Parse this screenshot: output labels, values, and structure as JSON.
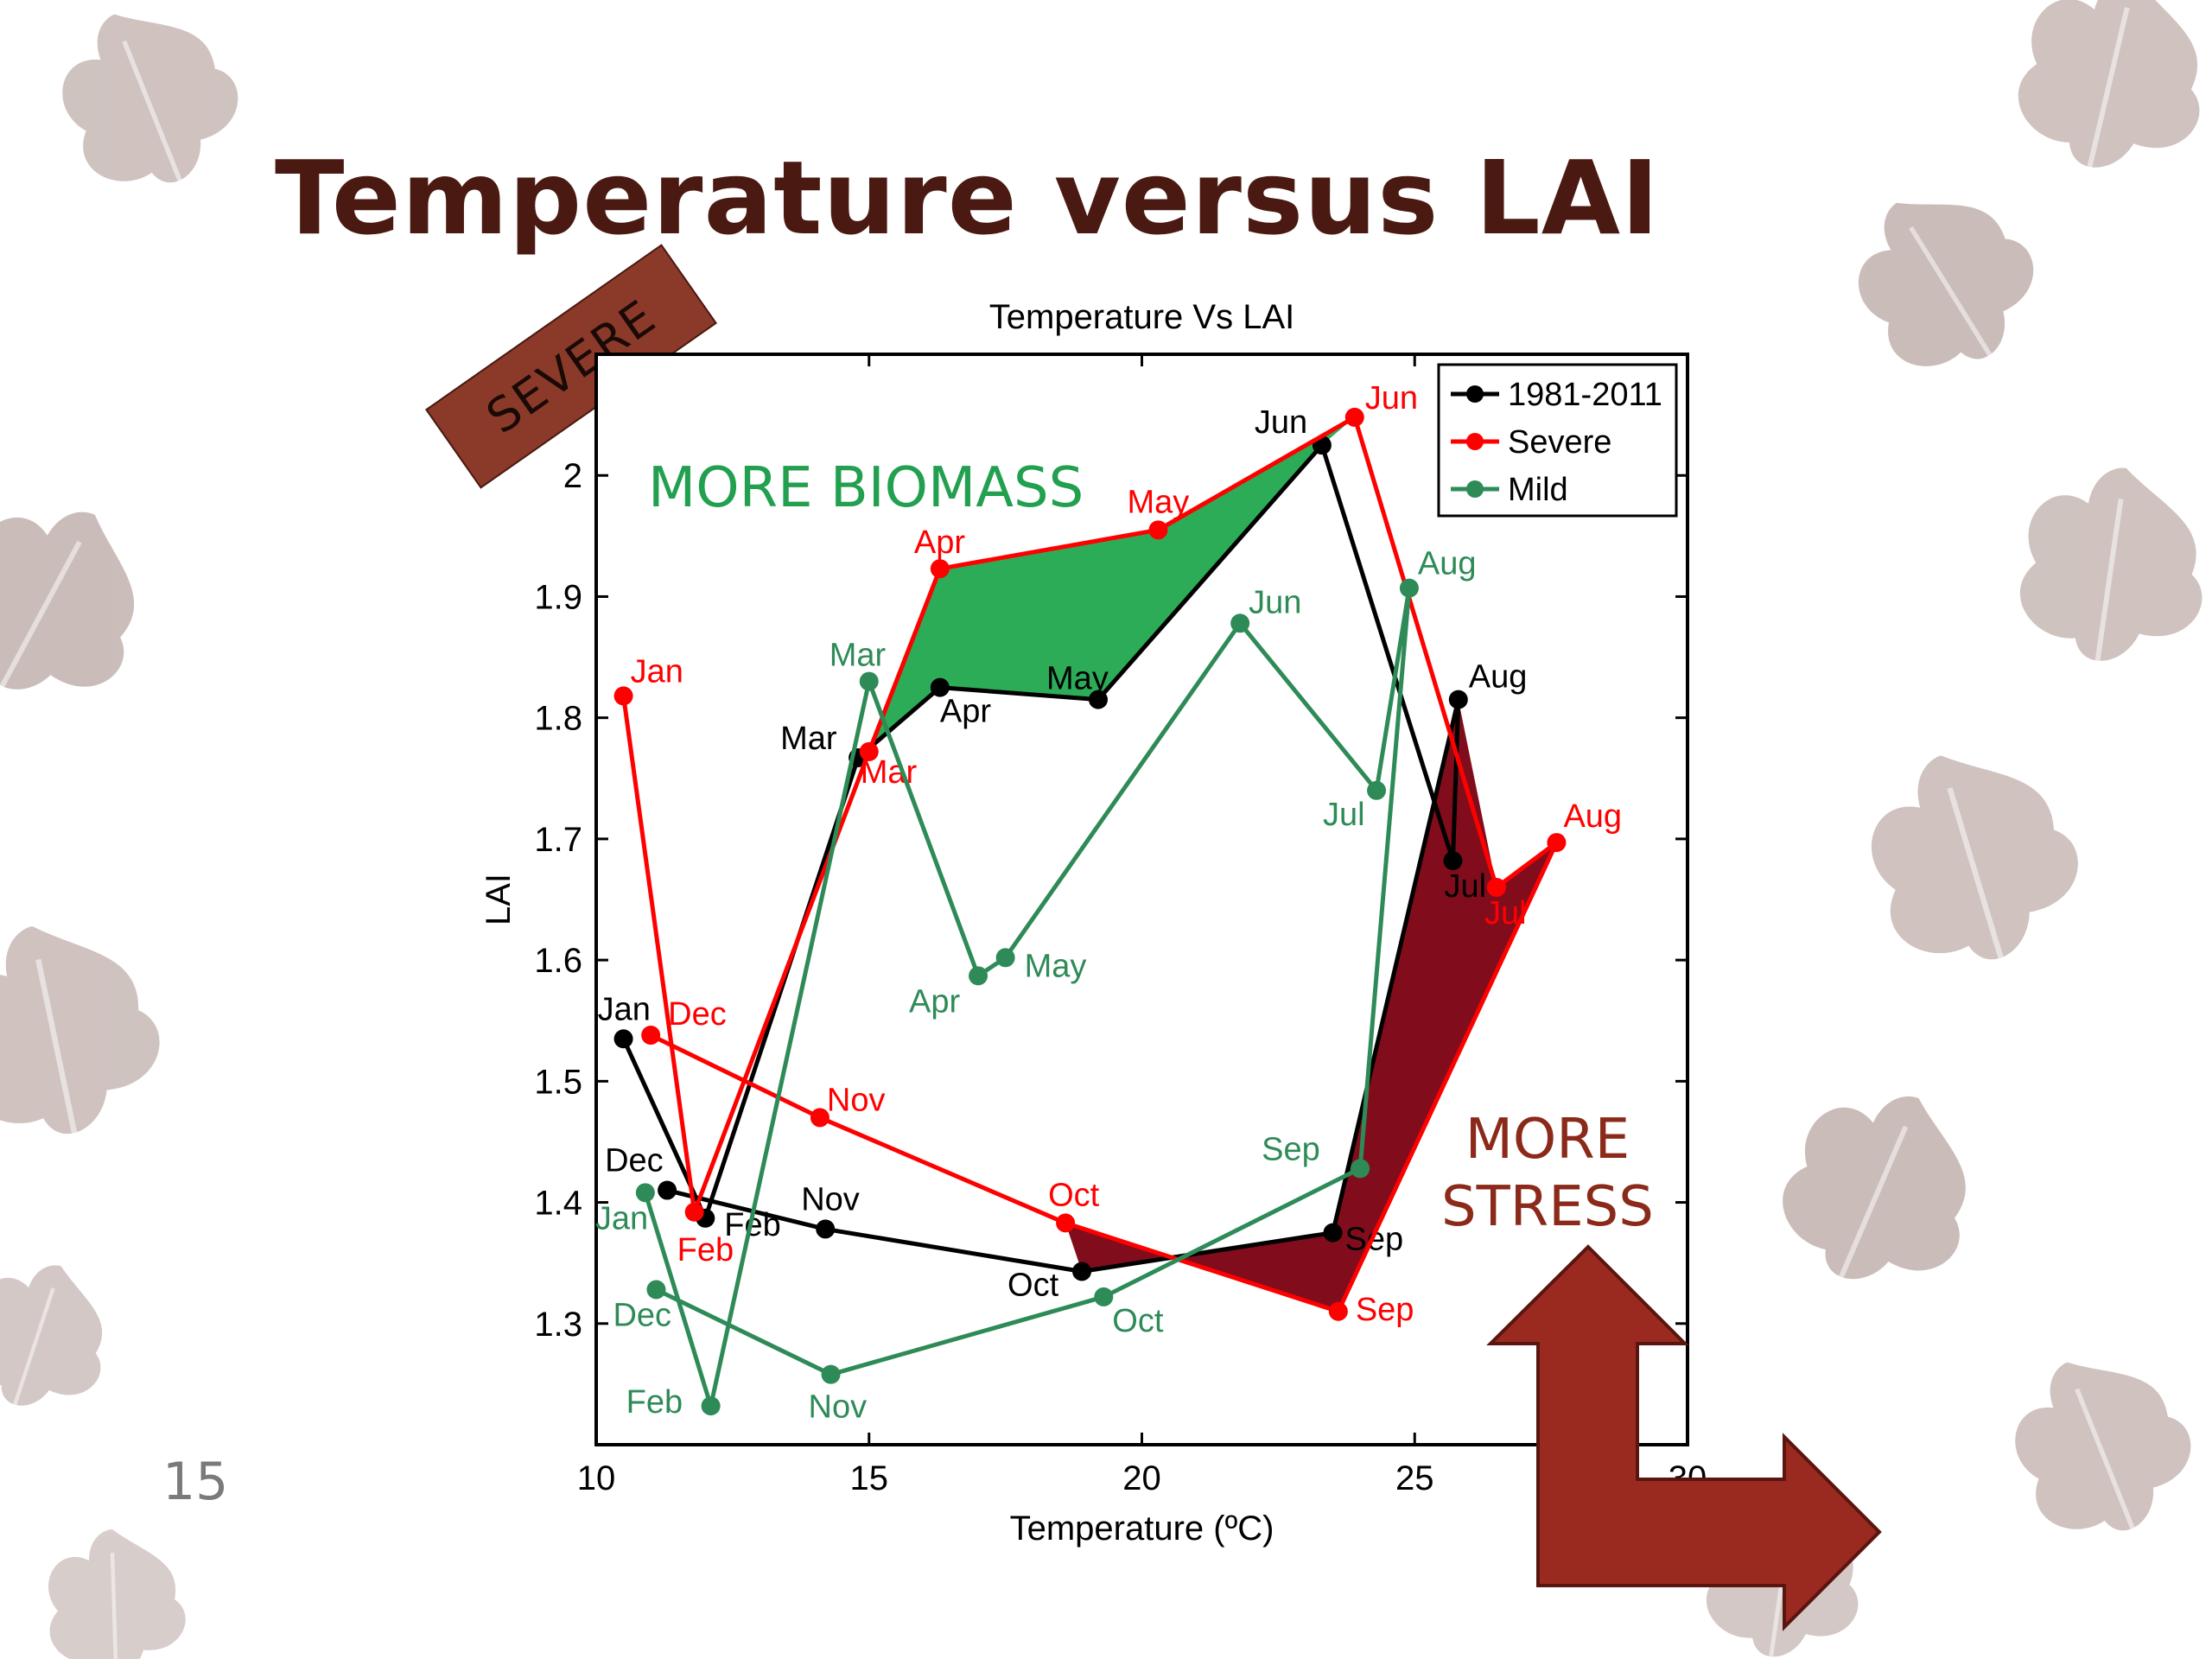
{
  "slide": {
    "title": "Temperature versus LAI",
    "page_number": "15",
    "severe_tag": "SEVERE",
    "more_biomass": "MORE BIOMASS",
    "more_stress_line1": "MORE",
    "more_stress_line2": "STRESS"
  },
  "colors": {
    "title": "#4a1a12",
    "leaf": "#a8928c",
    "arrow": "#9a2a1f",
    "baseline": "#000000",
    "severe": "#ff0000",
    "mild": "#2e8b57",
    "biomass_fill": "#22a84f",
    "stress_fill": "#7a0010"
  },
  "chart_data": {
    "type": "line",
    "title": "Temperature Vs LAI",
    "xlabel": "Temperature (ºC)",
    "ylabel": "LAI",
    "xlim": [
      10,
      30
    ],
    "ylim": [
      1.2,
      2.1
    ],
    "xticks": [
      10,
      15,
      20,
      25,
      30
    ],
    "yticks": [
      1.3,
      1.4,
      1.5,
      1.6,
      1.7,
      1.8,
      1.9,
      2
    ],
    "xtick_labels": [
      "10",
      "15",
      "20",
      "25",
      "30"
    ],
    "ytick_labels": [
      "1.3",
      "1.4",
      "1.5",
      "1.6",
      "1.7",
      "1.8",
      "1.9",
      "2"
    ],
    "legend_position": "top-right",
    "series": [
      {
        "name": "1981-2011",
        "color": "#000000",
        "points": [
          {
            "label": "Jan",
            "x": 10.5,
            "y": 1.535
          },
          {
            "label": "Feb",
            "x": 12.0,
            "y": 1.387
          },
          {
            "label": "Mar",
            "x": 14.8,
            "y": 1.767
          },
          {
            "label": "Apr",
            "x": 16.3,
            "y": 1.825
          },
          {
            "label": "May",
            "x": 19.2,
            "y": 1.815
          },
          {
            "label": "Jun",
            "x": 23.3,
            "y": 2.025
          },
          {
            "label": "Jul",
            "x": 25.7,
            "y": 1.682
          },
          {
            "label": "Aug",
            "x": 25.8,
            "y": 1.815
          },
          {
            "label": "Sep",
            "x": 23.5,
            "y": 1.375
          },
          {
            "label": "Oct",
            "x": 18.9,
            "y": 1.343
          },
          {
            "label": "Nov",
            "x": 14.2,
            "y": 1.378
          },
          {
            "label": "Dec",
            "x": 11.3,
            "y": 1.41
          }
        ]
      },
      {
        "name": "Severe",
        "color": "#ff0000",
        "points": [
          {
            "label": "Jan",
            "x": 10.5,
            "y": 1.818
          },
          {
            "label": "Feb",
            "x": 11.8,
            "y": 1.392
          },
          {
            "label": "Mar",
            "x": 15.0,
            "y": 1.772
          },
          {
            "label": "Apr",
            "x": 16.3,
            "y": 1.923
          },
          {
            "label": "May",
            "x": 20.3,
            "y": 1.955
          },
          {
            "label": "Jun",
            "x": 23.9,
            "y": 2.048
          },
          {
            "label": "Jul",
            "x": 26.5,
            "y": 1.66
          },
          {
            "label": "Aug",
            "x": 27.6,
            "y": 1.697
          },
          {
            "label": "Sep",
            "x": 23.6,
            "y": 1.31
          },
          {
            "label": "Oct",
            "x": 18.6,
            "y": 1.383
          },
          {
            "label": "Nov",
            "x": 14.1,
            "y": 1.47
          },
          {
            "label": "Dec",
            "x": 11.0,
            "y": 1.538
          }
        ]
      },
      {
        "name": "Mild",
        "color": "#2e8b57",
        "points": [
          {
            "label": "Jan",
            "x": 10.9,
            "y": 1.408
          },
          {
            "label": "Feb",
            "x": 12.1,
            "y": 1.232
          },
          {
            "label": "Mar",
            "x": 15.0,
            "y": 1.83
          },
          {
            "label": "Apr",
            "x": 17.0,
            "y": 1.587
          },
          {
            "label": "May",
            "x": 17.5,
            "y": 1.602
          },
          {
            "label": "Jun",
            "x": 21.8,
            "y": 1.878
          },
          {
            "label": "Jul",
            "x": 24.3,
            "y": 1.74
          },
          {
            "label": "Aug",
            "x": 24.9,
            "y": 1.907
          },
          {
            "label": "Sep",
            "x": 24.0,
            "y": 1.428
          },
          {
            "label": "Oct",
            "x": 19.3,
            "y": 1.322
          },
          {
            "label": "Nov",
            "x": 14.3,
            "y": 1.258
          },
          {
            "label": "Dec",
            "x": 11.1,
            "y": 1.328
          }
        ]
      }
    ]
  }
}
